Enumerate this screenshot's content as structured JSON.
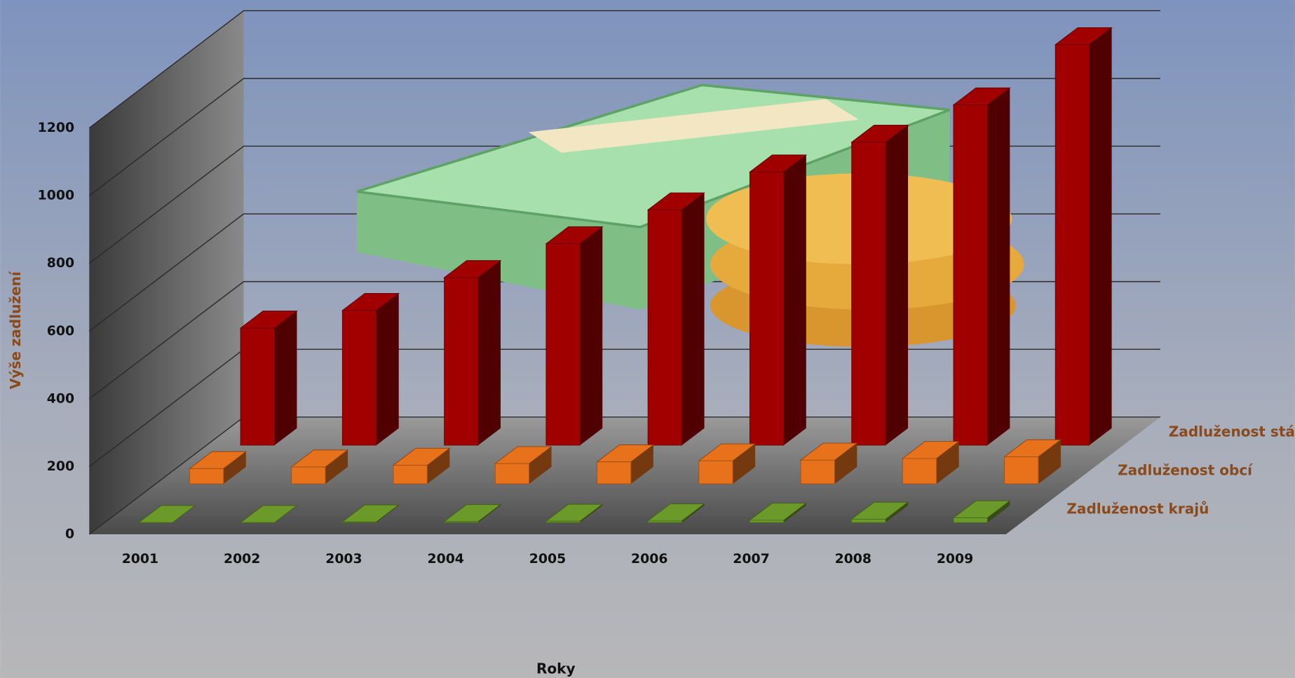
{
  "chart_data": {
    "type": "bar3d",
    "categories": [
      "2001",
      "2002",
      "2003",
      "2004",
      "2005",
      "2006",
      "2007",
      "2008",
      "2009"
    ],
    "series": [
      {
        "name": "Zadluženost krajů",
        "color": "#6b9a2a",
        "values": [
          0,
          0,
          2,
          3,
          4,
          5,
          7,
          10,
          14
        ]
      },
      {
        "name": "Zadluženost obcí",
        "color": "#e8721c",
        "values": [
          45,
          50,
          55,
          60,
          65,
          68,
          70,
          75,
          80
        ]
      },
      {
        "name": "Zadluženost státu",
        "color": "#a00000",
        "values": [
          346,
          398,
          495,
          595,
          695,
          807,
          895,
          1005,
          1183
        ]
      }
    ],
    "x_label": "Roky",
    "y_label": "Výše zadlužení",
    "ylim": [
      0,
      1200
    ],
    "yticks": [
      0,
      200,
      400,
      600,
      800,
      1000,
      1200
    ],
    "grid": true
  }
}
